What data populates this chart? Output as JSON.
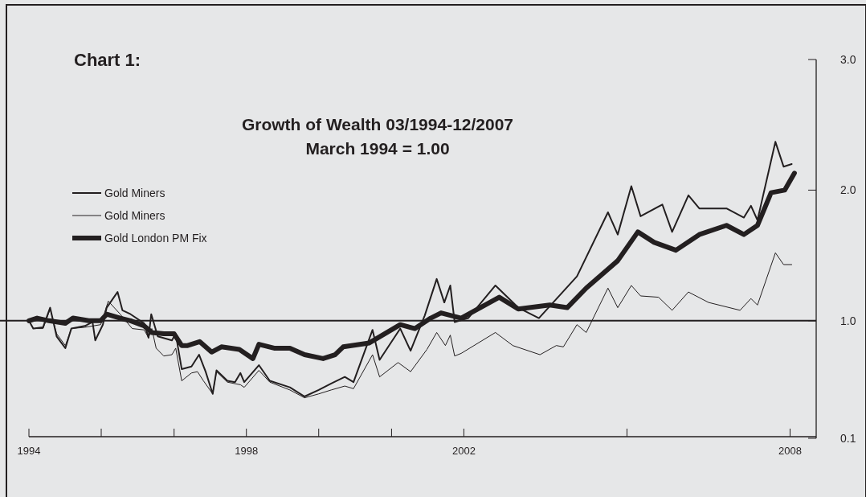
{
  "chart_data": {
    "type": "line",
    "title": "Growth of Wealth 03/1994-12/2007",
    "subtitle": "March 1994 = 1.00",
    "annotations": [
      "Chart 1:"
    ],
    "xlim": [
      1994,
      2008.48
    ],
    "xticks": [
      1994,
      {
        "value": 1995.33,
        "label": null
      },
      {
        "value": 1996.67,
        "label": null
      },
      1998,
      {
        "value": 1999.33,
        "label": null
      },
      {
        "value": 2000.67,
        "label": null
      },
      2002,
      {
        "value": 2005,
        "label": null
      },
      2008
    ],
    "ylim": [
      0.1,
      3.0
    ],
    "yticks": [
      {
        "value": 0.1,
        "label": "0.1"
      },
      {
        "value": 1,
        "label": "1.0"
      },
      {
        "value": 2,
        "label": "2.0"
      },
      {
        "value": 3,
        "label": "3.0"
      }
    ],
    "ref_lines": [
      {
        "axis": "y",
        "value": 1,
        "color": "#231f20"
      }
    ],
    "legend": "top left",
    "grid": false,
    "marker": "none",
    "line_style": "solid",
    "series": [
      {
        "name": "Gold Miners",
        "color": "#231f20",
        "x": [
          1994,
          1994.08,
          1994.26,
          1994.39,
          1994.51,
          1994.67,
          1994.78,
          1995.03,
          1995.17,
          1995.22,
          1995.36,
          1995.43,
          1995.63,
          1995.72,
          1995.87,
          1996.12,
          1996.2,
          1996.25,
          1996.37,
          1996.63,
          1996.7,
          1996.81,
          1996.99,
          1997.13,
          1997.25,
          1997.38,
          1997.45,
          1997.65,
          1997.79,
          1997.89,
          1997.96,
          1998.23,
          1998.43,
          1998.8,
          1999.07,
          1999.33,
          1999.56,
          1999.81,
          1999.97,
          2000.32,
          2000.45,
          2000.83,
          2001.02,
          2001.28,
          2001.5,
          2001.64,
          2001.75,
          2001.83,
          2002.08,
          2002.58,
          2003.0,
          2003.38,
          2004.08,
          2004.65,
          2004.83,
          2005.08,
          2005.25,
          2005.65,
          2005.83,
          2006.13,
          2006.33,
          2006.83,
          2007.15,
          2007.28,
          2007.4,
          2007.73,
          2007.88,
          2008.03
        ],
        "values": [
          1.0,
          0.94,
          0.95,
          1.1,
          0.88,
          0.79,
          0.94,
          0.96,
          0.99,
          0.85,
          0.97,
          1.1,
          1.22,
          1.08,
          1.05,
          0.98,
          0.87,
          1.05,
          0.88,
          0.85,
          0.9,
          0.63,
          0.65,
          0.74,
          0.61,
          0.44,
          0.62,
          0.54,
          0.53,
          0.6,
          0.53,
          0.66,
          0.54,
          0.49,
          0.42,
          0.47,
          0.52,
          0.57,
          0.53,
          0.93,
          0.7,
          0.94,
          0.77,
          1.04,
          1.32,
          1.14,
          1.27,
          0.99,
          1.02,
          1.27,
          1.1,
          1.02,
          1.34,
          1.83,
          1.66,
          2.03,
          1.8,
          1.89,
          1.68,
          1.96,
          1.86,
          1.86,
          1.79,
          1.88,
          1.77,
          2.37,
          2.18,
          2.2
        ]
      },
      {
        "name": "Gold Miners",
        "color": "#231f20",
        "x": [
          1994,
          1994.08,
          1994.26,
          1994.39,
          1994.51,
          1994.67,
          1994.78,
          1995.03,
          1995.32,
          1995.46,
          1995.68,
          1995.9,
          1996.12,
          1996.2,
          1996.26,
          1996.34,
          1996.48,
          1996.63,
          1996.7,
          1996.81,
          1996.99,
          1997.1,
          1997.21,
          1997.38,
          1997.45,
          1997.65,
          1997.89,
          1997.96,
          1998.23,
          1998.43,
          1998.8,
          1999.07,
          1999.33,
          1999.56,
          1999.81,
          1999.97,
          2000.32,
          2000.45,
          2000.79,
          2001.02,
          2001.32,
          2001.5,
          2001.66,
          2001.75,
          2001.83,
          2001.95,
          2002.58,
          2002.9,
          2003.4,
          2003.7,
          2003.83,
          2004.08,
          2004.25,
          2004.65,
          2004.83,
          2005.08,
          2005.25,
          2005.58,
          2005.83,
          2006.13,
          2006.5,
          2007.08,
          2007.28,
          2007.4,
          2007.73,
          2007.88,
          2008.03
        ],
        "values": [
          1.0,
          0.94,
          0.94,
          1.09,
          0.9,
          0.81,
          0.94,
          0.95,
          0.97,
          1.15,
          1.05,
          0.94,
          0.93,
          0.87,
          0.94,
          0.79,
          0.73,
          0.74,
          0.79,
          0.54,
          0.6,
          0.61,
          0.54,
          0.44,
          0.61,
          0.53,
          0.51,
          0.49,
          0.62,
          0.53,
          0.47,
          0.41,
          0.44,
          0.47,
          0.5,
          0.48,
          0.74,
          0.57,
          0.68,
          0.61,
          0.78,
          0.91,
          0.81,
          0.89,
          0.73,
          0.75,
          0.91,
          0.81,
          0.74,
          0.81,
          0.8,
          0.97,
          0.91,
          1.25,
          1.1,
          1.27,
          1.19,
          1.18,
          1.08,
          1.22,
          1.14,
          1.08,
          1.17,
          1.12,
          1.52,
          1.43,
          1.43
        ]
      },
      {
        "name": "Gold London PM Fix",
        "color": "#231f20",
        "x": [
          1994,
          1994.15,
          1994.37,
          1994.67,
          1994.81,
          1995.1,
          1995.32,
          1995.43,
          1995.68,
          1995.87,
          1996.12,
          1996.26,
          1996.48,
          1996.67,
          1996.81,
          1996.92,
          1997.14,
          1997.36,
          1997.54,
          1997.87,
          1998.12,
          1998.23,
          1998.51,
          1998.8,
          1999.07,
          1999.41,
          1999.63,
          1999.78,
          2000.26,
          2000.83,
          2001.1,
          2001.39,
          2001.58,
          2001.95,
          2002.65,
          2003.0,
          2003.58,
          2003.9,
          2004.25,
          2004.83,
          2005.2,
          2005.5,
          2005.9,
          2006.33,
          2006.83,
          2007.15,
          2007.4,
          2007.65,
          2007.9,
          2008.08
        ],
        "values": [
          1.0,
          1.02,
          1.0,
          0.98,
          1.02,
          1.0,
          1.0,
          1.05,
          1.02,
          1.0,
          0.96,
          0.91,
          0.9,
          0.9,
          0.81,
          0.81,
          0.84,
          0.76,
          0.8,
          0.78,
          0.71,
          0.82,
          0.79,
          0.79,
          0.74,
          0.71,
          0.74,
          0.8,
          0.83,
          0.97,
          0.94,
          1.02,
          1.06,
          1.02,
          1.18,
          1.09,
          1.12,
          1.1,
          1.25,
          1.46,
          1.68,
          1.6,
          1.54,
          1.66,
          1.73,
          1.66,
          1.73,
          1.98,
          2.0,
          2.13
        ]
      }
    ]
  }
}
